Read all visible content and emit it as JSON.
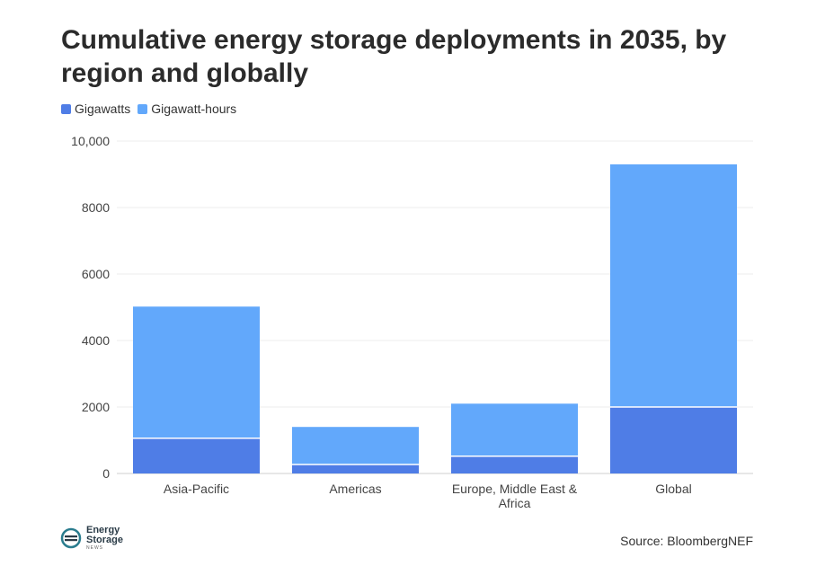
{
  "chart_data": {
    "type": "bar",
    "stacked": true,
    "title": "Cumulative energy storage deployments in 2035, by region and globally",
    "categories": [
      "Asia-Pacific",
      "Americas",
      "Europe, Middle East & Africa",
      "Global"
    ],
    "category_lines": [
      [
        "Asia-Pacific"
      ],
      [
        "Americas"
      ],
      [
        "Europe, Middle East &",
        "Africa"
      ],
      [
        "Global"
      ]
    ],
    "series": [
      {
        "name": "Gigawatts",
        "values": [
          1060,
          270,
          520,
          2000
        ]
      },
      {
        "name": "Gigawatt-hours",
        "values": [
          3960,
          1130,
          1580,
          7300
        ]
      }
    ],
    "ylim": [
      0,
      10000
    ],
    "yticks": [
      0,
      2000,
      4000,
      6000,
      8000,
      10000
    ],
    "ytick_labels": [
      "0",
      "2000",
      "4000",
      "6000",
      "8000",
      "10,000"
    ],
    "colors": {
      "Gigawatts": "#4f7de6",
      "Gigawatt-hours": "#62a8fb"
    },
    "xlabel": "",
    "ylabel": ""
  },
  "legend": {
    "items": [
      {
        "label": "Gigawatts",
        "color": "#4f7de6"
      },
      {
        "label": "Gigawatt-hours",
        "color": "#62a8fb"
      }
    ]
  },
  "footer": {
    "logo_line1": "Energy",
    "logo_line2": "Storage",
    "logo_line3": "NEWS",
    "source": "Source: BloombergNEF"
  }
}
